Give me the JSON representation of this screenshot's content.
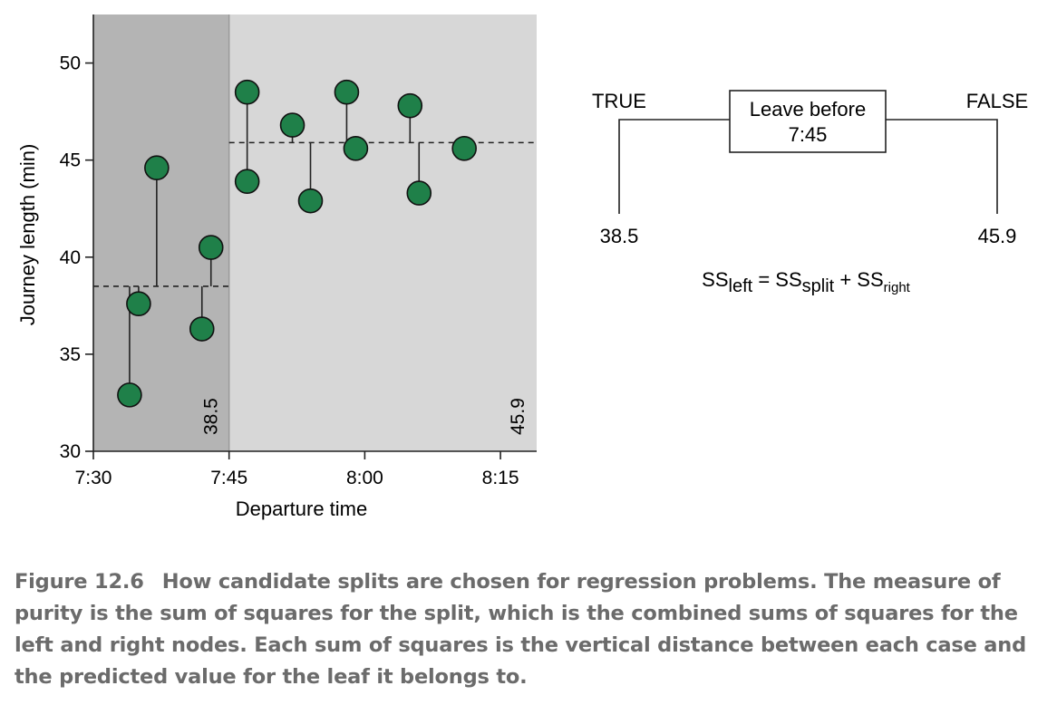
{
  "chart_data": {
    "type": "scatter",
    "xlabel": "Departure time",
    "ylabel": "Journey length (min)",
    "x_ticks": [
      "7:30",
      "7:45",
      "8:00",
      "8:15"
    ],
    "y_ticks": [
      30,
      35,
      40,
      45,
      50
    ],
    "ylim": [
      30,
      52.5
    ],
    "xlim": [
      "7:30",
      "8:19"
    ],
    "split_time": "7:45",
    "leaf_means": {
      "left": 38.5,
      "right": 45.9
    },
    "mean_labels": {
      "left": "38.5",
      "right": "45.9"
    },
    "series": [
      {
        "points": [
          {
            "time": "7:34",
            "y": 32.9
          },
          {
            "time": "7:35",
            "y": 37.6
          },
          {
            "time": "7:37",
            "y": 44.6
          },
          {
            "time": "7:42",
            "y": 36.3
          },
          {
            "time": "7:43",
            "y": 40.5
          },
          {
            "time": "7:47",
            "y": 43.9
          },
          {
            "time": "7:47",
            "y": 48.5
          },
          {
            "time": "7:52",
            "y": 46.8
          },
          {
            "time": "7:54",
            "y": 42.9
          },
          {
            "time": "7:58",
            "y": 48.5
          },
          {
            "time": "7:59",
            "y": 45.6
          },
          {
            "time": "8:05",
            "y": 47.8
          },
          {
            "time": "8:06",
            "y": 43.3
          },
          {
            "time": "8:11",
            "y": 45.6
          }
        ]
      }
    ],
    "colors": {
      "point": "#1f8049",
      "left_region": "#b4b4b4",
      "right_region": "#d7d7d7"
    }
  },
  "tree": {
    "true_label": "TRUE",
    "false_label": "FALSE",
    "node_line1": "Leave before",
    "node_line2": "7:45",
    "left_leaf": "38.5",
    "right_leaf": "45.9",
    "formula": {
      "ss1": "SS",
      "sub1": "left",
      "eq": " = ",
      "ss2": "SS",
      "sub2": "split",
      "plus": " + ",
      "ss3": "SS",
      "sub3": "right"
    }
  },
  "caption": {
    "label": "Figure 12.6",
    "text": "How candidate splits are chosen for regression problems. The measure of purity is the sum of squares for the split, which is the combined sums of squares for the left and right nodes. Each sum of squares is the vertical distance between each case and the predicted value for the leaf it belongs to."
  }
}
